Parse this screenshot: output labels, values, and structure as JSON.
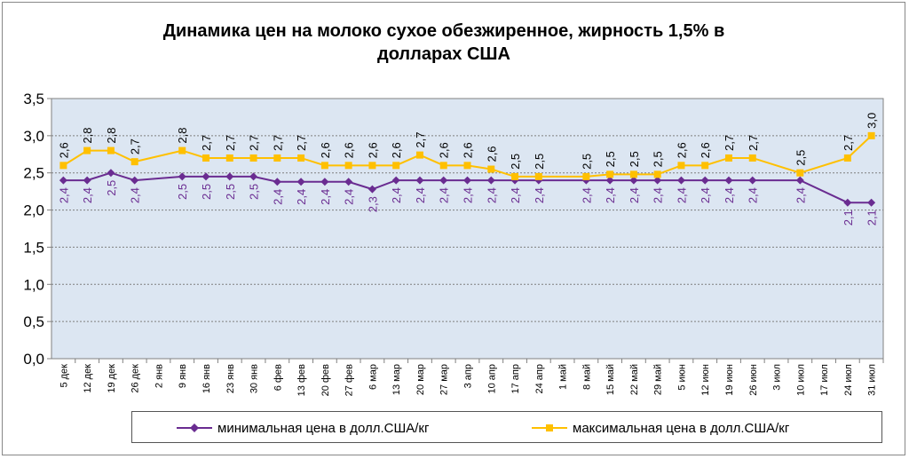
{
  "chart_data": {
    "type": "line",
    "title_lines": [
      "Динамика цен на молоко сухое обезжиренное, жирность 1,5%  в",
      "долларах США"
    ],
    "categories": [
      "5 дек",
      "12 дек",
      "19 дек",
      "26 дек",
      "2 янв",
      "9 янв",
      "16 янв",
      "23 янв",
      "30 янв",
      "6 фев",
      "13 фев",
      "20 фев",
      "27 фев",
      "6 мар",
      "13 мар",
      "20 мар",
      "27 мар",
      "3 апр",
      "10 апр",
      "17 апр",
      "24 апр",
      "1 май",
      "8 май",
      "15 май",
      "22 май",
      "29 май",
      "5 июн",
      "12 июн",
      "19 июн",
      "26 июн",
      "3 июл",
      "10 июл",
      "17 июл",
      "24 июл",
      "31 июл"
    ],
    "ylim": [
      0,
      3.5
    ],
    "yticks": [
      "0,0",
      "0,5",
      "1,0",
      "1,5",
      "2,0",
      "2,5",
      "3,0",
      "3,5"
    ],
    "grid": true,
    "legend_position": "bottom",
    "series": [
      {
        "name": "минимальная цена в долл.США/кг",
        "color": "#6a2c91",
        "marker": "diamond",
        "values": [
          2.4,
          2.4,
          2.5,
          2.4,
          null,
          2.45,
          2.45,
          2.45,
          2.45,
          2.38,
          2.38,
          2.38,
          2.38,
          2.28,
          2.4,
          2.4,
          2.4,
          2.4,
          2.4,
          2.4,
          2.4,
          null,
          2.4,
          2.4,
          2.4,
          2.4,
          2.4,
          2.4,
          2.4,
          2.4,
          null,
          2.4,
          null,
          2.1,
          2.1
        ],
        "labels": [
          "2,4",
          "2,4",
          "2,5",
          "2,4",
          "",
          "2,5",
          "2,5",
          "2,5",
          "2,5",
          "2,4",
          "2,4",
          "2,4",
          "2,4",
          "2,3",
          "2,4",
          "2,4",
          "2,4",
          "2,4",
          "2,4",
          "2,4",
          "2,4",
          "",
          "2,4",
          "2,4",
          "2,4",
          "2,4",
          "2,4",
          "2,4",
          "2,4",
          "2,4",
          "",
          "2,4",
          "",
          "2,1",
          "2,1"
        ]
      },
      {
        "name": "максимальная цена в долл.США/кг",
        "color": "#ffc000",
        "marker": "square",
        "values": [
          2.6,
          2.8,
          2.8,
          2.65,
          null,
          2.8,
          2.7,
          2.7,
          2.7,
          2.7,
          2.7,
          2.6,
          2.6,
          2.6,
          2.6,
          2.74,
          2.6,
          2.6,
          2.55,
          2.45,
          2.45,
          null,
          2.45,
          2.48,
          2.48,
          2.48,
          2.6,
          2.6,
          2.7,
          2.7,
          null,
          2.5,
          null,
          2.7,
          3.0
        ],
        "labels": [
          "2,6",
          "2,8",
          "2,8",
          "2,7",
          "",
          "2,8",
          "2,7",
          "2,7",
          "2,7",
          "2,7",
          "2,7",
          "2,6",
          "2,6",
          "2,6",
          "2,6",
          "2,7",
          "2,6",
          "2,6",
          "2,6",
          "2,5",
          "2,5",
          "",
          "2,5",
          "2,5",
          "2,5",
          "2,5",
          "2,6",
          "2,6",
          "2,7",
          "2,7",
          "",
          "2,5",
          "",
          "2,7",
          "3,0"
        ]
      }
    ]
  }
}
